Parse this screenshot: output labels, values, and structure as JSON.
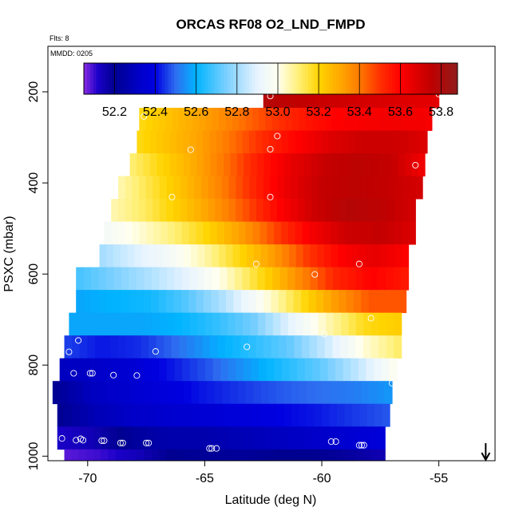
{
  "chart_data": {
    "type": "heatmap",
    "title": "ORCAS RF08 O2_LND_FMPD",
    "note_flights": "Flts: 8",
    "note_date": "MMDD: 0205",
    "xlabel": "Latitude (deg N)",
    "ylabel": "PSXC (mbar)",
    "xlim": [
      -71.7,
      -52.6
    ],
    "ylim": [
      1010,
      100
    ],
    "x_ticks": [
      -70,
      -65,
      -60,
      -55
    ],
    "x_tick_labels": [
      "-70",
      "-65",
      "-60",
      "-55"
    ],
    "y_ticks": [
      200,
      400,
      600,
      800,
      1000
    ],
    "y_tick_labels": [
      "200",
      "400",
      "600",
      "800",
      "1000"
    ],
    "colorbar": {
      "min": 52.05,
      "max": 53.88,
      "ticks": [
        52.2,
        52.4,
        52.6,
        52.8,
        53.0,
        53.2,
        53.4,
        53.6,
        53.8
      ],
      "tick_labels": [
        "52.2",
        "52.4",
        "52.6",
        "52.8",
        "53.0",
        "53.2",
        "53.4",
        "53.6",
        "53.8"
      ],
      "stops": [
        {
          "v": 52.05,
          "c": "#8a2be2"
        },
        {
          "v": 52.12,
          "c": "#1a00c8"
        },
        {
          "v": 52.2,
          "c": "#000090"
        },
        {
          "v": 52.32,
          "c": "#0000c8"
        },
        {
          "v": 52.4,
          "c": "#0000e0"
        },
        {
          "v": 52.5,
          "c": "#2e6ef0"
        },
        {
          "v": 52.6,
          "c": "#00b4ff"
        },
        {
          "v": 52.75,
          "c": "#7dd0ff"
        },
        {
          "v": 52.9,
          "c": "#e8f4ff"
        },
        {
          "v": 53.0,
          "c": "#fffff0"
        },
        {
          "v": 53.1,
          "c": "#fff07a"
        },
        {
          "v": 53.2,
          "c": "#ffd400"
        },
        {
          "v": 53.3,
          "c": "#ffaa00"
        },
        {
          "v": 53.4,
          "c": "#ff7a00"
        },
        {
          "v": 53.5,
          "c": "#ff3000"
        },
        {
          "v": 53.6,
          "c": "#ff0000"
        },
        {
          "v": 53.75,
          "c": "#c00000"
        },
        {
          "v": 53.88,
          "c": "#901c1c"
        }
      ]
    },
    "rows": [
      {
        "p_top": 190,
        "p_bot": 235,
        "x0": -62.5,
        "x1": -55.0,
        "values": [
          53.78,
          53.75,
          53.72,
          53.7,
          53.68,
          53.66
        ]
      },
      {
        "p_top": 235,
        "p_bot": 285,
        "x0": -67.8,
        "x1": -55.3,
        "values": [
          53.18,
          53.25,
          53.32,
          53.4,
          53.48,
          53.55,
          53.6,
          53.62,
          53.63,
          53.62
        ]
      },
      {
        "p_top": 285,
        "p_bot": 335,
        "x0": -67.9,
        "x1": -55.5,
        "values": [
          53.18,
          53.25,
          53.32,
          53.42,
          53.52,
          53.6,
          53.68,
          53.72,
          53.72,
          53.68
        ]
      },
      {
        "p_top": 335,
        "p_bot": 385,
        "x0": -68.2,
        "x1": -55.6,
        "values": [
          53.1,
          53.2,
          53.3,
          53.42,
          53.55,
          53.66,
          53.74,
          53.76,
          53.74,
          53.62
        ]
      },
      {
        "p_top": 385,
        "p_bot": 435,
        "x0": -68.7,
        "x1": -55.7,
        "values": [
          53.05,
          53.15,
          53.26,
          53.38,
          53.52,
          53.65,
          53.74,
          53.76,
          53.74,
          53.7
        ]
      },
      {
        "p_top": 435,
        "p_bot": 485,
        "x0": -69.0,
        "x1": -56.0,
        "values": [
          53.05,
          53.12,
          53.22,
          53.33,
          53.46,
          53.6,
          53.72,
          53.78,
          53.76,
          53.7
        ]
      },
      {
        "p_top": 485,
        "p_bot": 535,
        "x0": -69.3,
        "x1": -56.0,
        "values": [
          52.95,
          53.02,
          53.1,
          53.2,
          53.33,
          53.48,
          53.62,
          53.72,
          53.74,
          53.68
        ]
      },
      {
        "p_top": 535,
        "p_bot": 585,
        "x0": -69.5,
        "x1": -56.3,
        "values": [
          52.8,
          52.88,
          52.95,
          53.05,
          53.18,
          53.32,
          53.48,
          53.6,
          53.66,
          53.6
        ]
      },
      {
        "p_top": 585,
        "p_bot": 635,
        "x0": -70.5,
        "x1": -56.3,
        "values": [
          52.68,
          52.75,
          52.82,
          52.9,
          53.02,
          53.18,
          53.36,
          53.52,
          53.6,
          53.55
        ]
      },
      {
        "p_top": 635,
        "p_bot": 685,
        "x0": -70.5,
        "x1": -56.4,
        "values": [
          52.58,
          52.6,
          52.62,
          52.7,
          52.82,
          52.98,
          53.15,
          53.32,
          53.45,
          53.45
        ]
      },
      {
        "p_top": 685,
        "p_bot": 735,
        "x0": -70.8,
        "x1": -56.6,
        "values": [
          52.58,
          52.58,
          52.58,
          52.6,
          52.66,
          52.74,
          52.9,
          53.05,
          53.18,
          53.22
        ]
      },
      {
        "p_top": 735,
        "p_bot": 785,
        "x0": -71.0,
        "x1": -56.6,
        "values": [
          52.46,
          52.42,
          52.44,
          52.5,
          52.58,
          52.65,
          52.72,
          52.86,
          53.02,
          53.12
        ]
      },
      {
        "p_top": 785,
        "p_bot": 835,
        "x0": -71.2,
        "x1": -56.8,
        "values": [
          52.3,
          52.32,
          52.36,
          52.42,
          52.48,
          52.56,
          52.64,
          52.72,
          52.85,
          53.0
        ]
      },
      {
        "p_top": 835,
        "p_bot": 885,
        "x0": -71.5,
        "x1": -57.0,
        "values": [
          52.2,
          52.3,
          52.34,
          52.38,
          52.42,
          52.45,
          52.48,
          52.5,
          52.52,
          52.56
        ]
      },
      {
        "p_top": 885,
        "p_bot": 935,
        "x0": -71.3,
        "x1": -57.1,
        "values": [
          52.2,
          52.28,
          52.32,
          52.34,
          52.36,
          52.38,
          52.4,
          52.42,
          52.45,
          52.48
        ]
      },
      {
        "p_top": 935,
        "p_bot": 985,
        "x0": -71.3,
        "x1": -57.3,
        "values": [
          52.12,
          52.15,
          52.22,
          52.26,
          52.26,
          52.28,
          52.3,
          52.32,
          52.35,
          52.38
        ]
      },
      {
        "p_top": 985,
        "p_bot": 1035,
        "x0": -71.0,
        "x1": -57.3,
        "values": [
          52.08,
          52.1,
          52.14,
          52.2,
          52.22,
          52.22,
          52.2,
          52.2,
          52.18,
          52.15
        ]
      }
    ],
    "points": [
      [
        -62.4,
        193
      ],
      [
        -62.2,
        209
      ],
      [
        -57.8,
        185
      ],
      [
        -55.0,
        205
      ],
      [
        -67.6,
        222
      ],
      [
        -67.6,
        254
      ],
      [
        -61.9,
        297
      ],
      [
        -62.2,
        326
      ],
      [
        -65.6,
        327
      ],
      [
        -56.0,
        361
      ],
      [
        -68.9,
        373
      ],
      [
        -66.4,
        431
      ],
      [
        -62.2,
        431
      ],
      [
        -55.8,
        549
      ],
      [
        -70.4,
        573
      ],
      [
        -70.2,
        573
      ],
      [
        -69.9,
        573
      ],
      [
        -62.8,
        578
      ],
      [
        -58.4,
        578
      ],
      [
        -60.3,
        601
      ],
      [
        -55.8,
        676
      ],
      [
        -57.9,
        697
      ],
      [
        -59.9,
        732
      ],
      [
        -70.4,
        746
      ],
      [
        -70.8,
        771
      ],
      [
        -67.1,
        770
      ],
      [
        -63.2,
        760
      ],
      [
        -71.4,
        818
      ],
      [
        -70.6,
        818
      ],
      [
        -69.9,
        818
      ],
      [
        -69.8,
        818
      ],
      [
        -68.9,
        822
      ],
      [
        -67.9,
        823
      ],
      [
        -57.0,
        840
      ],
      [
        -56.7,
        823
      ],
      [
        -71.1,
        961
      ],
      [
        -70.5,
        965
      ],
      [
        -70.3,
        962
      ],
      [
        -70.2,
        965
      ],
      [
        -69.4,
        966
      ],
      [
        -69.3,
        966
      ],
      [
        -68.6,
        971
      ],
      [
        -68.5,
        971
      ],
      [
        -67.5,
        971
      ],
      [
        -67.4,
        971
      ],
      [
        -64.8,
        983
      ],
      [
        -64.7,
        983
      ],
      [
        -64.5,
        983
      ],
      [
        -59.6,
        968
      ],
      [
        -59.4,
        968
      ],
      [
        -58.4,
        976
      ],
      [
        -58.3,
        976
      ],
      [
        -58.2,
        976
      ]
    ],
    "arrow_x": -53.0
  }
}
